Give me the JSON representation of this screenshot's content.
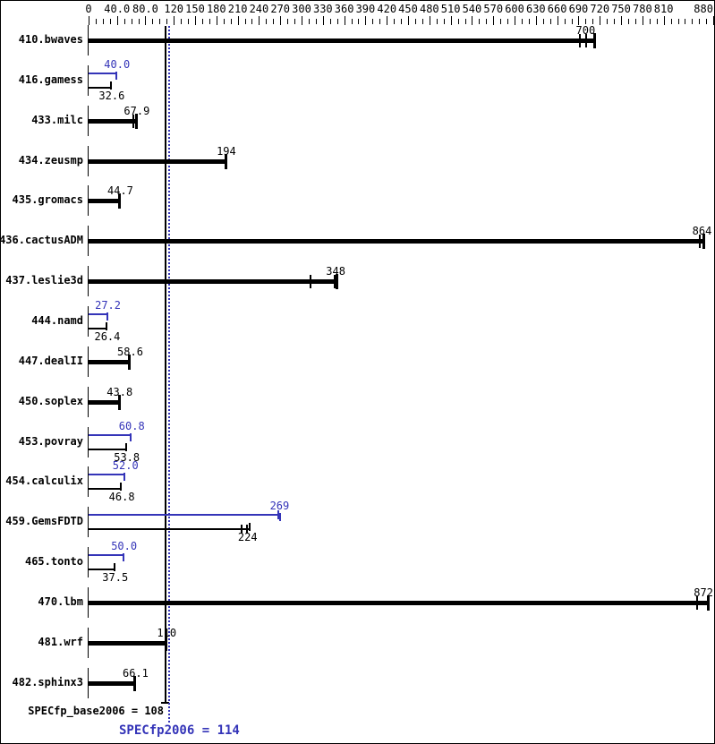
{
  "colors": {
    "accent_blue": "#3434b8",
    "bar_black": "#000000",
    "background": "#ffffff"
  },
  "chart_data": {
    "type": "bar",
    "orientation": "horizontal",
    "x_range": [
      0,
      880
    ],
    "x_minor_tick_step": 10,
    "grid": false,
    "x_major_ticks": [
      {
        "v": 0,
        "label": "0"
      },
      {
        "v": 40,
        "label": "40.0"
      },
      {
        "v": 80,
        "label": "80.0"
      },
      {
        "v": 120,
        "label": "120"
      },
      {
        "v": 150,
        "label": "150"
      },
      {
        "v": 180,
        "label": "180"
      },
      {
        "v": 210,
        "label": "210"
      },
      {
        "v": 240,
        "label": "240"
      },
      {
        "v": 270,
        "label": "270"
      },
      {
        "v": 300,
        "label": "300"
      },
      {
        "v": 330,
        "label": "330"
      },
      {
        "v": 360,
        "label": "360"
      },
      {
        "v": 390,
        "label": "390"
      },
      {
        "v": 420,
        "label": "420"
      },
      {
        "v": 450,
        "label": "450"
      },
      {
        "v": 480,
        "label": "480"
      },
      {
        "v": 510,
        "label": "510"
      },
      {
        "v": 540,
        "label": "540"
      },
      {
        "v": 570,
        "label": "570"
      },
      {
        "v": 600,
        "label": "600"
      },
      {
        "v": 630,
        "label": "630"
      },
      {
        "v": 660,
        "label": "660"
      },
      {
        "v": 690,
        "label": "690"
      },
      {
        "v": 720,
        "label": "720"
      },
      {
        "v": 750,
        "label": "750"
      },
      {
        "v": 780,
        "label": "780"
      },
      {
        "v": 810,
        "label": "810"
      },
      {
        "v": 880,
        "label": "880"
      }
    ],
    "reference_lines": [
      {
        "name": "SPECfp_base2006",
        "value": 108,
        "color": "black",
        "style": "solid"
      },
      {
        "name": "SPECfp2006",
        "value": 114,
        "color": "blue",
        "style": "dotted"
      }
    ],
    "rows": [
      {
        "name": "410.bwaves",
        "peak": null,
        "base": {
          "label": "700",
          "value": 700,
          "run_ticks": [
            692,
            701
          ],
          "bar_end": 714
        }
      },
      {
        "name": "416.gamess",
        "peak": {
          "label": "40.0",
          "value": 40,
          "run_ticks": [],
          "bar_end": 40
        },
        "base": {
          "label": "32.6",
          "value": 32.6,
          "run_ticks": [],
          "bar_end": 32.6
        }
      },
      {
        "name": "433.milc",
        "peak": null,
        "base": {
          "label": "67.9",
          "value": 67.9,
          "run_ticks": [
            63.5,
            67.5
          ],
          "bar_end": 68.5
        }
      },
      {
        "name": "434.zeusmp",
        "peak": null,
        "base": {
          "label": "194",
          "value": 194,
          "run_ticks": [],
          "bar_end": 194
        }
      },
      {
        "name": "435.gromacs",
        "peak": null,
        "base": {
          "label": "44.7",
          "value": 44.7,
          "run_ticks": [],
          "bar_end": 44.7
        }
      },
      {
        "name": "436.cactusADM",
        "peak": null,
        "base": {
          "label": "864",
          "value": 864,
          "run_ticks": [
            861
          ],
          "bar_end": 867
        }
      },
      {
        "name": "437.leslie3d",
        "peak": null,
        "base": {
          "label": "348",
          "value": 348,
          "run_ticks": [
            313,
            347
          ],
          "bar_end": 351
        }
      },
      {
        "name": "444.namd",
        "peak": {
          "label": "27.2",
          "value": 27.2,
          "run_ticks": [],
          "bar_end": 27.2
        },
        "base": {
          "label": "26.4",
          "value": 26.4,
          "run_ticks": [],
          "bar_end": 26.4
        }
      },
      {
        "name": "447.dealII",
        "peak": null,
        "base": {
          "label": "58.6",
          "value": 58.6,
          "run_ticks": [],
          "bar_end": 58.6
        }
      },
      {
        "name": "450.soplex",
        "peak": null,
        "base": {
          "label": "43.8",
          "value": 43.8,
          "run_ticks": [],
          "bar_end": 43.8
        }
      },
      {
        "name": "453.povray",
        "peak": {
          "label": "60.8",
          "value": 60.8,
          "run_ticks": [],
          "bar_end": 60.8
        },
        "base": {
          "label": "53.8",
          "value": 53.8,
          "run_ticks": [],
          "bar_end": 53.8
        }
      },
      {
        "name": "454.calculix",
        "peak": {
          "label": "52.0",
          "value": 52,
          "run_ticks": [],
          "bar_end": 52
        },
        "base": {
          "label": "46.8",
          "value": 46.8,
          "run_ticks": [],
          "bar_end": 46.8
        }
      },
      {
        "name": "459.GemsFDTD",
        "peak": {
          "label": "269",
          "value": 269,
          "run_ticks": [
            267
          ],
          "bar_end": 271
        },
        "base": {
          "label": "224",
          "value": 224,
          "run_ticks": [
            216,
            223.5
          ],
          "bar_end": 228
        }
      },
      {
        "name": "465.tonto",
        "peak": {
          "label": "50.0",
          "value": 50,
          "run_ticks": [],
          "bar_end": 50
        },
        "base": {
          "label": "37.5",
          "value": 37.5,
          "run_ticks": [],
          "bar_end": 37.5
        }
      },
      {
        "name": "470.lbm",
        "peak": null,
        "base": {
          "label": "872",
          "value": 872,
          "run_ticks": [
            857
          ],
          "bar_end": 874
        }
      },
      {
        "name": "481.wrf",
        "peak": null,
        "base": {
          "label": "110",
          "value": 110,
          "run_ticks": [],
          "bar_end": 110
        }
      },
      {
        "name": "482.sphinx3",
        "peak": null,
        "base": {
          "label": "66.1",
          "value": 66.1,
          "run_ticks": [],
          "bar_end": 66.1
        }
      }
    ],
    "footer": {
      "base_label": "SPECfp_base2006 = 108",
      "base_value": 108,
      "peak_label": "SPECfp2006 = 114",
      "peak_value": 114
    }
  }
}
